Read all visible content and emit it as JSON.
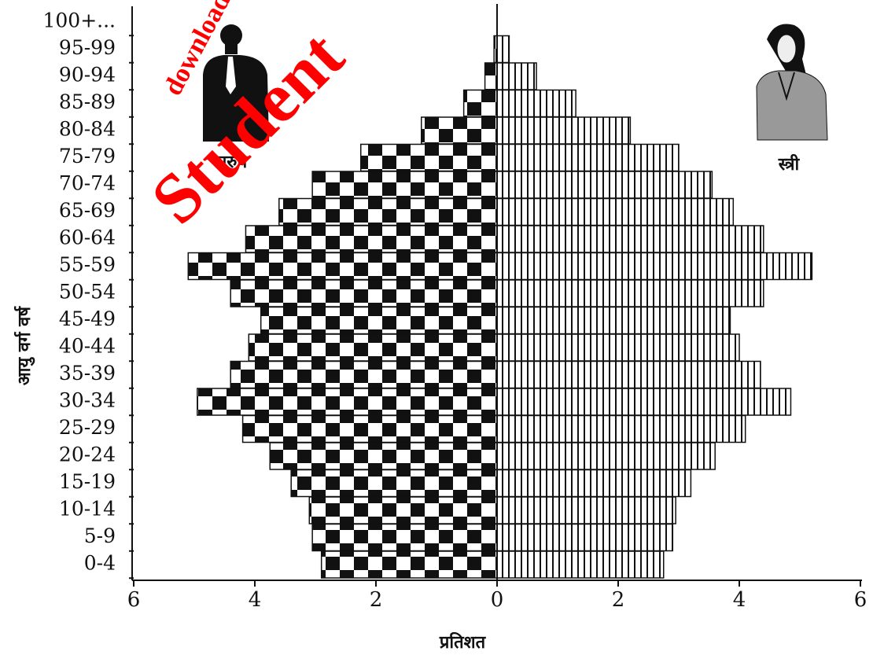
{
  "chart_data": {
    "type": "pyramid",
    "y_label": "आयु वर्ग वर्ष",
    "x_label": "प्रतिशत",
    "watermark": [
      "downloade",
      "Student"
    ],
    "categories": [
      "100+...",
      "95-99",
      "90-94",
      "85-89",
      "80-84",
      "75-79",
      "70-74",
      "65-69",
      "60-64",
      "55-59",
      "50-54",
      "45-49",
      "40-44",
      "35-39",
      "30-34",
      "25-29",
      "20-24",
      "15-19",
      "10-14",
      "5-9",
      "0-4"
    ],
    "series": [
      {
        "name": "पुरुष",
        "side": "left",
        "pattern": "checker",
        "color": "#111111",
        "values": [
          0,
          0.05,
          0.2,
          0.55,
          1.25,
          2.25,
          3.05,
          3.6,
          4.15,
          5.1,
          4.4,
          3.9,
          4.1,
          4.4,
          4.95,
          4.2,
          3.75,
          3.4,
          3.1,
          3.05,
          2.9
        ]
      },
      {
        "name": "स्त्री",
        "side": "right",
        "pattern": "stripes",
        "color": "#111111",
        "values": [
          0,
          0.2,
          0.65,
          1.3,
          2.2,
          3.0,
          3.55,
          3.9,
          4.4,
          5.2,
          4.4,
          3.85,
          4.0,
          4.35,
          4.85,
          4.1,
          3.6,
          3.2,
          2.95,
          2.9,
          2.75
        ]
      }
    ],
    "xlim": [
      -6,
      6
    ],
    "xticks": [
      {
        "value": -6,
        "label": "6"
      },
      {
        "value": -4,
        "label": "4"
      },
      {
        "value": -2,
        "label": "2"
      },
      0,
      2,
      4,
      6
    ]
  }
}
